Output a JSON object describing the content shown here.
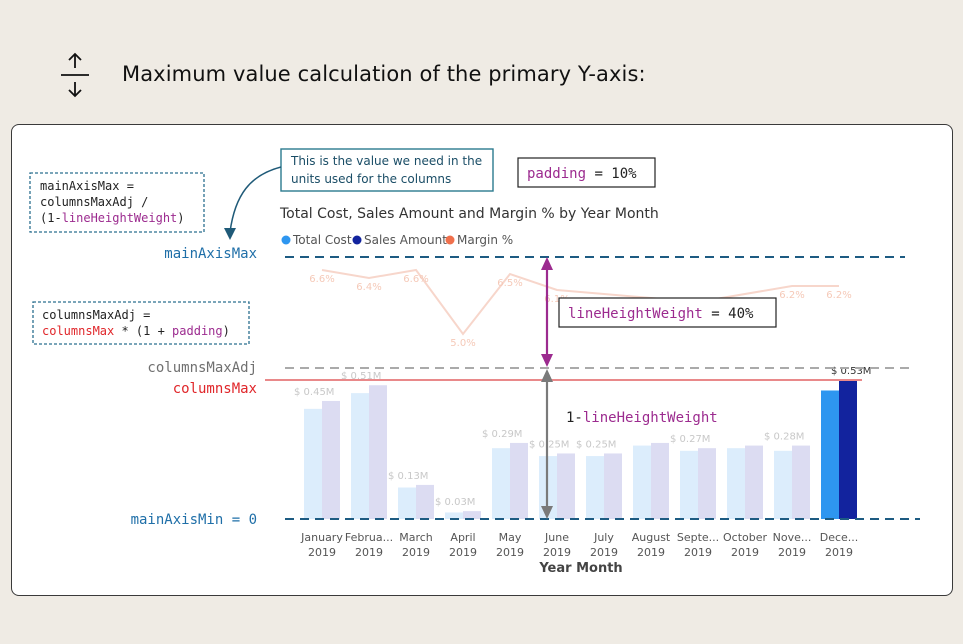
{
  "header": {
    "title": "Maximum value calculation of the primary Y-axis:",
    "icon": "vertical-resize-icon"
  },
  "callout": {
    "text_line1": "This is the value we need in the",
    "text_line2": "units used for the columns"
  },
  "formula_main": {
    "line1": "mainAxisMax =",
    "line2": "columnsMaxAdj /",
    "line3_prefix": "(1-",
    "line3_var": "lineHeightWeight",
    "line3_suffix": ")"
  },
  "formula_adj": {
    "line1": "columnsMaxAdj =",
    "line2_var1": "columnsMax",
    "line2_mid": " * (1 + ",
    "line2_var2": "padding",
    "line2_suffix": ")"
  },
  "padding_box": {
    "name": "padding",
    "rest": " = 10%"
  },
  "weight_box": {
    "name": "lineHeightWeight",
    "rest": " = 40%"
  },
  "inner_label": {
    "prefix": "1-",
    "name": "lineHeightWeight"
  },
  "axis_labels": {
    "main_axis_max": "mainAxisMax",
    "columns_max_adj": "columnsMaxAdj",
    "columns_max": "columnsMax",
    "main_axis_min": "mainAxisMin = 0"
  },
  "colors": {
    "blue_text": "#1f6fa8",
    "purple": "#9c2b8f",
    "red": "#e0262a",
    "total_cost": "#2e96f0",
    "sales_amount": "#12239e",
    "margin": "#f0704c"
  },
  "chart_data": {
    "type": "bar",
    "title": "Total Cost, Sales Amount and Margin % by Year Month",
    "xlabel": "Year Month",
    "legend": [
      "Total Cost",
      "Sales Amount",
      "Margin %"
    ],
    "legend_position": "top-left",
    "categories": [
      {
        "month": "January",
        "year": "2019"
      },
      {
        "month": "Februa...",
        "year": "2019"
      },
      {
        "month": "March",
        "year": "2019"
      },
      {
        "month": "April",
        "year": "2019"
      },
      {
        "month": "May",
        "year": "2019"
      },
      {
        "month": "June",
        "year": "2019"
      },
      {
        "month": "July",
        "year": "2019"
      },
      {
        "month": "August",
        "year": "2019"
      },
      {
        "month": "Septe...",
        "year": "2019"
      },
      {
        "month": "October",
        "year": "2019"
      },
      {
        "month": "Nove...",
        "year": "2019"
      },
      {
        "month": "Dece...",
        "year": "2019"
      }
    ],
    "series": [
      {
        "name": "Total Cost",
        "values": [
          0.42,
          0.48,
          0.12,
          0.025,
          0.27,
          0.24,
          0.24,
          0.28,
          0.26,
          0.27,
          0.26,
          0.49
        ]
      },
      {
        "name": "Sales Amount",
        "values": [
          0.45,
          0.51,
          0.13,
          0.03,
          0.29,
          0.25,
          0.25,
          0.29,
          0.27,
          0.28,
          0.28,
          0.53
        ]
      },
      {
        "name": "Margin %",
        "values": [
          6.6,
          6.4,
          6.6,
          5.0,
          6.5,
          6.1,
          6.0,
          null,
          5.8,
          null,
          6.2,
          6.2
        ]
      }
    ],
    "data_labels": [
      "$ 0.45M",
      "$ 0.51M",
      "$ 0.13M",
      "$ 0.03M",
      "$ 0.29M",
      "$ 0.25M",
      "$ 0.25M",
      "",
      "$ 0.27M",
      "",
      "$ 0.28M",
      "$ 0.53M"
    ],
    "margin_labels": [
      "6.6%",
      "6.4%",
      "6.6%",
      "5.0%",
      "6.5%",
      "6.1%",
      "6.0%",
      "",
      "5.8%",
      "",
      "6.2%",
      "6.2%"
    ],
    "ylim": [
      0,
      0.53
    ]
  }
}
